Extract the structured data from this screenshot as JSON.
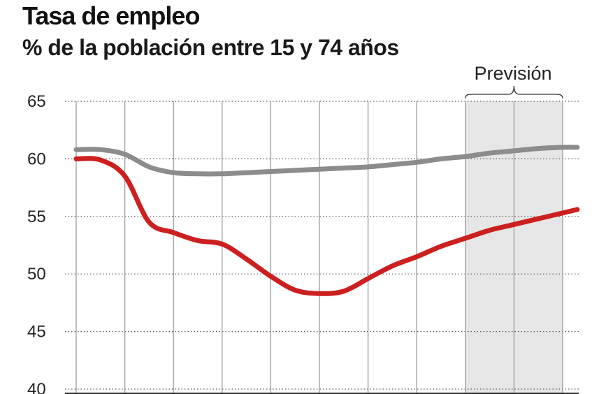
{
  "chart_data": {
    "type": "line",
    "title": "Tasa de empleo",
    "subtitle": "% de la población entre 15 y 74 años",
    "ylim": [
      40,
      65
    ],
    "yticks": [
      "65",
      "60",
      "55",
      "50",
      "45",
      "40"
    ],
    "grid": true,
    "forecast": {
      "label": "Previsión",
      "start_index": 8,
      "end_index": 10
    },
    "x": [
      0,
      0.5,
      1,
      1.5,
      2,
      2.5,
      3,
      3.5,
      4,
      4.5,
      5,
      5.5,
      6,
      6.5,
      7,
      7.5,
      8,
      8.5,
      9,
      9.5,
      10,
      10.3
    ],
    "series": [
      {
        "color": "#8c8c8c",
        "values": [
          60.8,
          60.8,
          60.4,
          59.3,
          58.8,
          58.7,
          58.7,
          58.8,
          58.9,
          59.0,
          59.1,
          59.2,
          59.3,
          59.5,
          59.7,
          60.0,
          60.2,
          60.5,
          60.7,
          60.9,
          61.0,
          61.0
        ]
      },
      {
        "color": "#cc1f1f",
        "values": [
          60.0,
          59.9,
          58.5,
          54.5,
          53.6,
          52.9,
          52.6,
          51.3,
          49.8,
          48.6,
          48.3,
          48.5,
          49.6,
          50.7,
          51.5,
          52.4,
          53.1,
          53.8,
          54.3,
          54.8,
          55.3,
          55.6
        ]
      }
    ]
  },
  "colors": {
    "forecast_band": "#e6e6e6",
    "grid": "#9a9a9a",
    "axis": "#333333"
  }
}
